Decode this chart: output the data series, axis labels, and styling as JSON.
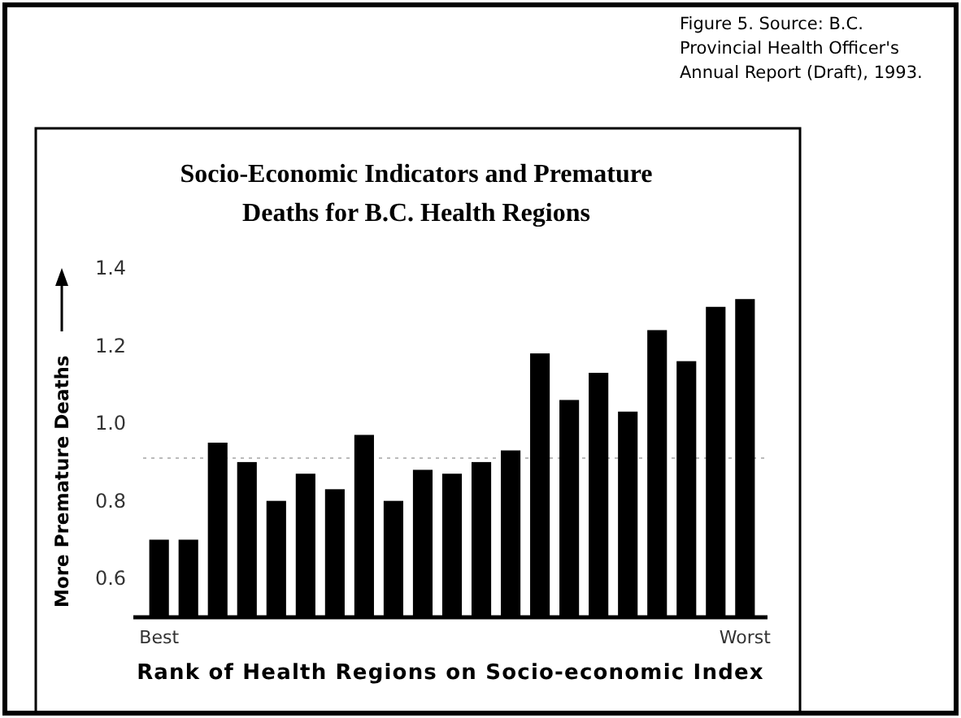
{
  "chart_data": {
    "type": "bar",
    "title": "Socio-Economic Indicators and Premature Deaths for B.C. Health Regions",
    "xlabel": "Rank of Health Regions on Socio-economic Index",
    "ylabel": "More Premature Deaths",
    "annotations": [
      "Figure 5. Source: B.C. Provincial Health Officer's Annual Report (Draft), 1993."
    ],
    "categories": [
      "Best",
      null,
      null,
      null,
      null,
      null,
      null,
      null,
      null,
      null,
      null,
      null,
      null,
      null,
      null,
      null,
      null,
      null,
      null,
      null,
      "Worst"
    ],
    "values": [
      0.7,
      0.7,
      0.95,
      0.9,
      0.8,
      0.87,
      0.83,
      0.97,
      0.8,
      0.88,
      0.87,
      0.9,
      0.93,
      1.18,
      1.06,
      1.13,
      1.03,
      1.24,
      1.16,
      1.3,
      1.32
    ],
    "color": "#000000",
    "ylim": [
      0.5,
      1.4
    ],
    "yticks": [
      0.6,
      0.8,
      {
        "value": 1.0,
        "label": "1.0"
      },
      1.2,
      1.4
    ],
    "ref_lines": [
      {
        "axis": "y",
        "value": 0.91,
        "color": "#bbbbbb",
        "line_style": "dotted"
      }
    ],
    "grid": false
  }
}
